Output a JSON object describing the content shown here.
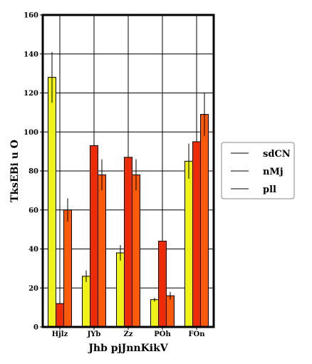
{
  "chart_data": {
    "type": "bar",
    "title": "",
    "xlabel": "Jhb pjJnnKikV",
    "ylabel": "TksEBi u O",
    "ylim": [
      0,
      160
    ],
    "yticks": [
      0,
      20,
      40,
      60,
      80,
      100,
      120,
      140,
      160
    ],
    "grid": true,
    "legend_position": "right",
    "categories": [
      "Hjlz",
      "JYb",
      "Zz",
      "POh",
      "FOn"
    ],
    "series": [
      {
        "name": "sdCN",
        "color": "#eef21a",
        "values": [
          128,
          26,
          38,
          14,
          85
        ],
        "errors": [
          13,
          3,
          4,
          1,
          9
        ]
      },
      {
        "name": "nMj",
        "color": "#ee2a07",
        "values": [
          12,
          93,
          87,
          44,
          95
        ],
        "errors": [
          0,
          0,
          0,
          0,
          0
        ]
      },
      {
        "name": "pll",
        "color": "#fb5a0c",
        "values": [
          60,
          78,
          78,
          16,
          109
        ],
        "errors": [
          6,
          8,
          8,
          2,
          11
        ]
      }
    ]
  }
}
